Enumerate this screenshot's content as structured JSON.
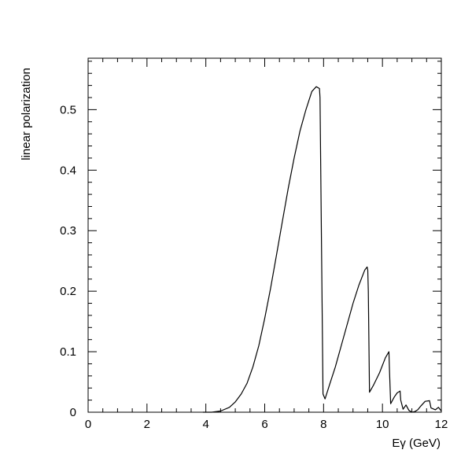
{
  "chart_data": {
    "type": "line",
    "title": "",
    "xlabel": "Eγ (GeV)",
    "ylabel": "linear polarization",
    "xlim": [
      0,
      12
    ],
    "ylim": [
      0,
      0.585
    ],
    "grid": false,
    "legend": "none",
    "x_ticks": [
      "0",
      "2",
      "4",
      "6",
      "8",
      "10",
      "12"
    ],
    "y_ticks": [
      "0",
      "0.1",
      "0.2",
      "0.3",
      "0.4",
      "0.5"
    ],
    "line_color": "#000000",
    "series": [
      {
        "x": [
          3.9,
          4.2,
          4.5,
          4.8,
          5.0,
          5.2,
          5.4,
          5.6,
          5.8,
          6.0,
          6.2,
          6.4,
          6.6,
          6.8,
          7.0,
          7.2,
          7.4,
          7.6,
          7.75,
          7.86,
          7.88,
          7.98,
          8.05,
          8.2,
          8.4,
          8.6,
          8.8,
          9.0,
          9.2,
          9.4,
          9.48,
          9.5,
          9.52,
          9.56,
          9.7,
          9.9,
          10.1,
          10.22,
          10.24,
          10.28,
          10.4,
          10.5,
          10.6,
          10.62,
          10.7,
          10.8,
          10.9,
          11.0,
          11.1,
          11.2,
          11.3,
          11.45,
          11.6,
          11.65,
          11.8,
          11.9,
          12.0
        ],
        "values": [
          0.0,
          0.0,
          0.002,
          0.008,
          0.017,
          0.03,
          0.048,
          0.075,
          0.11,
          0.155,
          0.205,
          0.26,
          0.315,
          0.37,
          0.42,
          0.465,
          0.5,
          0.53,
          0.538,
          0.535,
          0.52,
          0.03,
          0.022,
          0.045,
          0.075,
          0.11,
          0.145,
          0.18,
          0.21,
          0.235,
          0.24,
          0.235,
          0.2,
          0.033,
          0.045,
          0.065,
          0.09,
          0.1,
          0.07,
          0.014,
          0.025,
          0.032,
          0.035,
          0.02,
          0.005,
          0.012,
          0.003,
          0.0,
          0.001,
          0.004,
          0.01,
          0.018,
          0.019,
          0.007,
          0.004,
          0.008,
          0.002
        ]
      }
    ]
  }
}
